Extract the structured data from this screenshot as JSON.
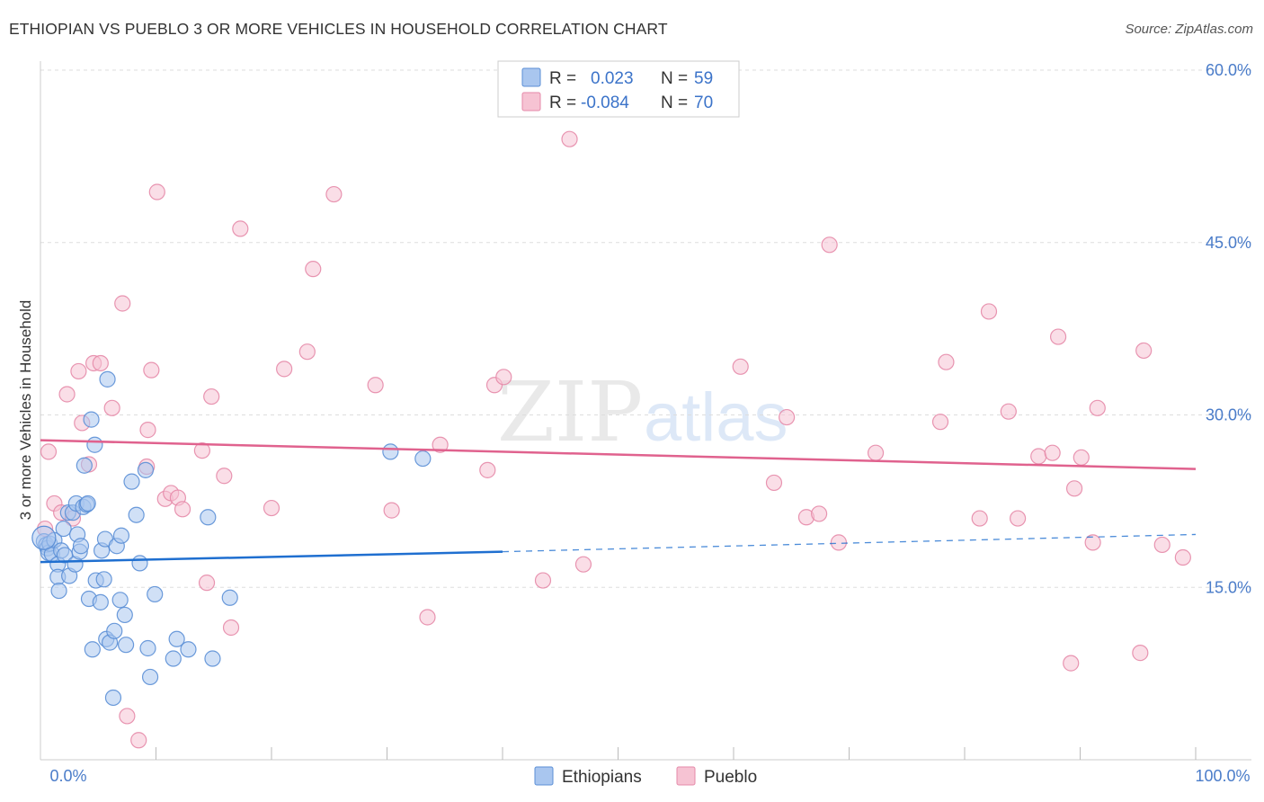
{
  "title": "ETHIOPIAN VS PUEBLO 3 OR MORE VEHICLES IN HOUSEHOLD CORRELATION CHART",
  "source": "Source: ZipAtlas.com",
  "watermark": {
    "zip": "ZIP",
    "atlas": "atlas"
  },
  "colors": {
    "ethiopians_fill": "#a9c6ef",
    "ethiopians_stroke": "#5b8fd6",
    "ethiopians_line": "#1f6fd0",
    "pueblo_fill": "#f6c3d3",
    "pueblo_stroke": "#e58aa9",
    "pueblo_line": "#e0628e",
    "axis_text": "#4a7cc9",
    "grid": "#dddddd"
  },
  "legend": {
    "rows": [
      {
        "r_label": "R =",
        "r_value": "0.023",
        "n_label": "N =",
        "n_value": "59"
      },
      {
        "r_label": "R =",
        "r_value": "-0.084",
        "n_label": "N =",
        "n_value": "70"
      }
    ]
  },
  "chart_data": {
    "type": "scatter",
    "title": "ETHIOPIAN VS PUEBLO 3 OR MORE VEHICLES IN HOUSEHOLD CORRELATION CHART",
    "xlabel": "",
    "ylabel": "3 or more Vehicles in Household",
    "xlim": [
      0,
      100
    ],
    "ylim": [
      0,
      60
    ],
    "x_tick_labels": [
      "0.0%",
      "100.0%"
    ],
    "y_ticks": [
      15,
      30,
      45,
      60
    ],
    "y_tick_labels": [
      "15.0%",
      "30.0%",
      "45.0%",
      "60.0%"
    ],
    "grid": true,
    "legend_position": "top-center",
    "series": [
      {
        "name": "Ethiopians",
        "R": 0.023,
        "N": 59,
        "trend": {
          "x": [
            0,
            40
          ],
          "y": [
            17.2,
            18.1
          ],
          "dashed_to": [
            100,
            19.6
          ]
        },
        "points": [
          [
            0.3,
            19.0
          ],
          [
            0.5,
            18.7
          ],
          [
            0.6,
            18.4
          ],
          [
            0.7,
            18.0
          ],
          [
            0.8,
            18.8
          ],
          [
            1.0,
            17.9
          ],
          [
            1.2,
            19.1
          ],
          [
            1.5,
            17.0
          ],
          [
            1.5,
            15.9
          ],
          [
            1.6,
            14.7
          ],
          [
            1.8,
            18.2
          ],
          [
            2.0,
            20.1
          ],
          [
            2.1,
            17.8
          ],
          [
            2.4,
            21.5
          ],
          [
            2.5,
            16.0
          ],
          [
            2.8,
            21.5
          ],
          [
            3.0,
            17.0
          ],
          [
            3.1,
            22.3
          ],
          [
            3.2,
            19.6
          ],
          [
            3.4,
            18.1
          ],
          [
            3.5,
            18.6
          ],
          [
            3.7,
            22.0
          ],
          [
            3.8,
            25.6
          ],
          [
            4.0,
            22.2
          ],
          [
            4.1,
            22.3
          ],
          [
            4.2,
            14.0
          ],
          [
            4.4,
            29.6
          ],
          [
            4.5,
            9.6
          ],
          [
            4.7,
            27.4
          ],
          [
            4.8,
            15.6
          ],
          [
            5.2,
            13.7
          ],
          [
            5.3,
            18.2
          ],
          [
            5.5,
            15.7
          ],
          [
            5.6,
            19.2
          ],
          [
            5.7,
            10.5
          ],
          [
            5.8,
            33.1
          ],
          [
            6.0,
            10.2
          ],
          [
            6.3,
            5.4
          ],
          [
            6.4,
            11.2
          ],
          [
            6.6,
            18.6
          ],
          [
            6.9,
            13.9
          ],
          [
            7.0,
            19.5
          ],
          [
            7.3,
            12.6
          ],
          [
            7.4,
            10.0
          ],
          [
            7.9,
            24.2
          ],
          [
            8.3,
            21.3
          ],
          [
            8.6,
            17.1
          ],
          [
            9.1,
            25.2
          ],
          [
            9.3,
            9.7
          ],
          [
            9.5,
            7.2
          ],
          [
            9.9,
            14.4
          ],
          [
            11.5,
            8.8
          ],
          [
            11.8,
            10.5
          ],
          [
            12.8,
            9.6
          ],
          [
            14.5,
            21.1
          ],
          [
            14.9,
            8.8
          ],
          [
            16.4,
            14.1
          ],
          [
            30.3,
            26.8
          ],
          [
            33.1,
            26.2
          ]
        ]
      },
      {
        "name": "Pueblo",
        "R": -0.084,
        "N": 70,
        "trend": {
          "x": [
            0,
            100
          ],
          "y": [
            27.8,
            25.3
          ]
        },
        "points": [
          [
            0.4,
            20.1
          ],
          [
            0.7,
            26.8
          ],
          [
            1.2,
            22.3
          ],
          [
            1.8,
            21.5
          ],
          [
            2.3,
            31.8
          ],
          [
            2.8,
            21.0
          ],
          [
            3.3,
            33.8
          ],
          [
            3.6,
            29.3
          ],
          [
            4.2,
            25.7
          ],
          [
            4.6,
            34.5
          ],
          [
            5.2,
            34.5
          ],
          [
            6.2,
            30.6
          ],
          [
            7.1,
            39.7
          ],
          [
            7.5,
            3.8
          ],
          [
            8.5,
            1.7
          ],
          [
            9.2,
            25.5
          ],
          [
            9.3,
            28.7
          ],
          [
            9.6,
            33.9
          ],
          [
            10.1,
            49.4
          ],
          [
            10.8,
            22.7
          ],
          [
            11.3,
            23.2
          ],
          [
            11.9,
            22.8
          ],
          [
            12.3,
            21.8
          ],
          [
            14.0,
            26.9
          ],
          [
            14.4,
            15.4
          ],
          [
            14.8,
            31.6
          ],
          [
            15.9,
            24.7
          ],
          [
            16.5,
            11.5
          ],
          [
            17.3,
            46.2
          ],
          [
            20.0,
            21.9
          ],
          [
            21.1,
            34.0
          ],
          [
            23.1,
            35.5
          ],
          [
            23.6,
            42.7
          ],
          [
            25.4,
            49.2
          ],
          [
            29.0,
            32.6
          ],
          [
            30.4,
            21.7
          ],
          [
            33.5,
            12.4
          ],
          [
            34.6,
            27.4
          ],
          [
            38.7,
            25.2
          ],
          [
            39.3,
            32.6
          ],
          [
            40.1,
            33.3
          ],
          [
            43.5,
            15.6
          ],
          [
            45.8,
            54.0
          ],
          [
            47.0,
            17.0
          ],
          [
            60.6,
            34.2
          ],
          [
            63.5,
            24.1
          ],
          [
            64.6,
            29.8
          ],
          [
            66.3,
            21.1
          ],
          [
            67.4,
            21.4
          ],
          [
            68.3,
            44.8
          ],
          [
            69.1,
            18.9
          ],
          [
            72.3,
            26.7
          ],
          [
            77.9,
            29.4
          ],
          [
            78.4,
            34.6
          ],
          [
            81.3,
            21.0
          ],
          [
            82.1,
            39.0
          ],
          [
            83.8,
            30.3
          ],
          [
            84.6,
            21.0
          ],
          [
            86.4,
            26.4
          ],
          [
            87.6,
            26.7
          ],
          [
            88.1,
            36.8
          ],
          [
            89.2,
            8.4
          ],
          [
            89.5,
            23.6
          ],
          [
            90.1,
            26.3
          ],
          [
            91.1,
            18.9
          ],
          [
            91.5,
            30.6
          ],
          [
            95.2,
            9.3
          ],
          [
            95.5,
            35.6
          ],
          [
            97.1,
            18.7
          ],
          [
            98.9,
            17.6
          ]
        ]
      }
    ]
  },
  "bottom_legend": {
    "items": [
      {
        "label": "Ethiopians"
      },
      {
        "label": "Pueblo"
      }
    ]
  }
}
